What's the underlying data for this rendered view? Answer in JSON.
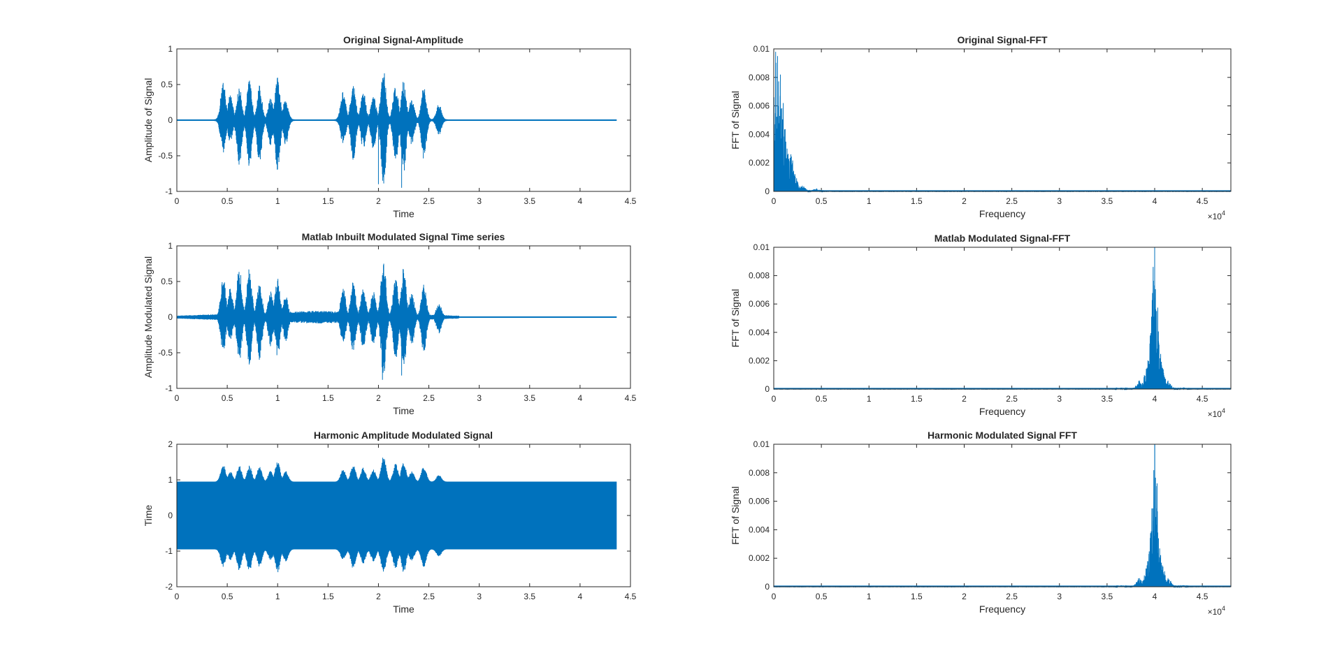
{
  "figure": {
    "background": "#ffffff",
    "line_color": "#0072BD",
    "axis_color": "#262626"
  },
  "chart_data": [
    {
      "id": "orig-amp",
      "type": "line",
      "kind": "audio",
      "title": "Original Signal-Amplitude",
      "xlabel": "Time",
      "ylabel": "Amplitude of Signal",
      "xlim": [
        0,
        4.5
      ],
      "ylim": [
        -1,
        1
      ],
      "xticks": [
        0,
        0.5,
        1,
        1.5,
        2,
        2.5,
        3,
        3.5,
        4,
        4.5
      ],
      "xtick_labels": [
        "0",
        "0.5",
        "1",
        "1.5",
        "2",
        "2.5",
        "3",
        "3.5",
        "4",
        "4.5"
      ],
      "yticks": [
        -1,
        -0.5,
        0,
        0.5,
        1
      ],
      "ytick_labels": [
        "-1",
        "-0.5",
        "0",
        "0.5",
        "1"
      ],
      "exponent": "",
      "carrier": 0,
      "baseline": 0,
      "noise": 0.01,
      "x_end": 4.36,
      "bursts": [
        {
          "x": 0.46,
          "max": 0.55,
          "min": -0.48
        },
        {
          "x": 0.53,
          "max": 0.35,
          "min": -0.3
        },
        {
          "x": 0.62,
          "max": 0.45,
          "min": -0.65
        },
        {
          "x": 0.72,
          "max": 0.55,
          "min": -0.7
        },
        {
          "x": 0.82,
          "max": 0.48,
          "min": -0.58
        },
        {
          "x": 0.93,
          "max": 0.3,
          "min": -0.35
        },
        {
          "x": 1.0,
          "max": 0.6,
          "min": -0.72
        },
        {
          "x": 1.08,
          "max": 0.3,
          "min": -0.35
        },
        {
          "x": 1.65,
          "max": 0.4,
          "min": -0.35
        },
        {
          "x": 1.75,
          "max": 0.5,
          "min": -0.55
        },
        {
          "x": 1.85,
          "max": 0.4,
          "min": -0.4
        },
        {
          "x": 1.95,
          "max": 0.35,
          "min": -0.4
        },
        {
          "x": 2.05,
          "max": 0.72,
          "min": -0.9
        },
        {
          "x": 2.17,
          "max": 0.5,
          "min": -0.6
        },
        {
          "x": 2.25,
          "max": 0.55,
          "min": -0.75
        },
        {
          "x": 2.33,
          "max": 0.3,
          "min": -0.35
        },
        {
          "x": 2.45,
          "max": 0.45,
          "min": -0.55
        },
        {
          "x": 2.6,
          "max": 0.22,
          "min": -0.2
        }
      ],
      "spikes": [
        {
          "x": 2.0,
          "value": -0.9
        },
        {
          "x": 2.23,
          "value": -0.95
        }
      ]
    },
    {
      "id": "orig-fft",
      "type": "line",
      "kind": "fft",
      "title": "Original Signal-FFT",
      "xlabel": "Frequency",
      "ylabel": "FFT of Signal",
      "xlim": [
        0,
        48000
      ],
      "ylim": [
        0,
        0.01
      ],
      "xticks": [
        0,
        5000,
        10000,
        15000,
        20000,
        25000,
        30000,
        35000,
        40000,
        45000
      ],
      "xtick_labels": [
        "0",
        "0.5",
        "1",
        "1.5",
        "2",
        "2.5",
        "3",
        "3.5",
        "4",
        "4.5"
      ],
      "yticks": [
        0,
        0.002,
        0.004,
        0.006,
        0.008,
        0.01
      ],
      "ytick_labels": [
        "0",
        "0.002",
        "0.004",
        "0.006",
        "0.008",
        "0.01"
      ],
      "exponent": "10",
      "exponent_power": "4",
      "peaks": [
        {
          "x": 200,
          "value": 0.0098
        },
        {
          "x": 400,
          "value": 0.0095
        },
        {
          "x": 700,
          "value": 0.0082
        },
        {
          "x": 1000,
          "value": 0.0062
        },
        {
          "x": 1400,
          "value": 0.003
        },
        {
          "x": 1800,
          "value": 0.0026
        },
        {
          "x": 2200,
          "value": 0.0012
        },
        {
          "x": 3000,
          "value": 0.0004
        },
        {
          "x": 4500,
          "value": 0.0002
        }
      ]
    },
    {
      "id": "matlab-mod",
      "type": "line",
      "kind": "audio",
      "title": "Matlab Inbuilt Modulated Signal Time series",
      "xlabel": "Time",
      "ylabel": "Amplitude Modulated Signal",
      "xlim": [
        0,
        4.5
      ],
      "ylim": [
        -1,
        1
      ],
      "xticks": [
        0,
        0.5,
        1,
        1.5,
        2,
        2.5,
        3,
        3.5,
        4,
        4.5
      ],
      "xtick_labels": [
        "0",
        "0.5",
        "1",
        "1.5",
        "2",
        "2.5",
        "3",
        "3.5",
        "4",
        "4.5"
      ],
      "yticks": [
        -1,
        -0.5,
        0,
        0.5,
        1
      ],
      "ytick_labels": [
        "-1",
        "-0.5",
        "0",
        "0.5",
        "1"
      ],
      "exponent": "",
      "carrier": 0.08,
      "baseline": 0,
      "noise": 0.01,
      "x_end": 4.36,
      "bursts": [
        {
          "x": 0.46,
          "max": 0.55,
          "min": -0.5
        },
        {
          "x": 0.53,
          "max": 0.4,
          "min": -0.35
        },
        {
          "x": 0.62,
          "max": 0.7,
          "min": -0.62
        },
        {
          "x": 0.72,
          "max": 0.68,
          "min": -0.68
        },
        {
          "x": 0.82,
          "max": 0.5,
          "min": -0.6
        },
        {
          "x": 0.93,
          "max": 0.35,
          "min": -0.4
        },
        {
          "x": 1.0,
          "max": 0.55,
          "min": -0.55
        },
        {
          "x": 1.08,
          "max": 0.3,
          "min": -0.35
        },
        {
          "x": 1.65,
          "max": 0.4,
          "min": -0.4
        },
        {
          "x": 1.75,
          "max": 0.5,
          "min": -0.5
        },
        {
          "x": 1.85,
          "max": 0.4,
          "min": -0.45
        },
        {
          "x": 1.95,
          "max": 0.35,
          "min": -0.4
        },
        {
          "x": 2.05,
          "max": 0.83,
          "min": -0.85
        },
        {
          "x": 2.17,
          "max": 0.55,
          "min": -0.6
        },
        {
          "x": 2.25,
          "max": 0.7,
          "min": -0.75
        },
        {
          "x": 2.33,
          "max": 0.35,
          "min": -0.4
        },
        {
          "x": 2.45,
          "max": 0.45,
          "min": -0.5
        },
        {
          "x": 2.6,
          "max": 0.2,
          "min": -0.22
        }
      ],
      "spikes": [
        {
          "x": 2.04,
          "value": -0.88
        },
        {
          "x": 2.23,
          "value": -0.82
        }
      ]
    },
    {
      "id": "matlab-fft",
      "type": "line",
      "kind": "fft",
      "title": "Matlab Modulated Signal-FFT",
      "xlabel": "Frequency",
      "ylabel": "FFT of Signal",
      "xlim": [
        0,
        48000
      ],
      "ylim": [
        0,
        0.01
      ],
      "xticks": [
        0,
        5000,
        10000,
        15000,
        20000,
        25000,
        30000,
        35000,
        40000,
        45000
      ],
      "xtick_labels": [
        "0",
        "0.5",
        "1",
        "1.5",
        "2",
        "2.5",
        "3",
        "3.5",
        "4",
        "4.5"
      ],
      "yticks": [
        0,
        0.002,
        0.004,
        0.006,
        0.008,
        0.01
      ],
      "ytick_labels": [
        "0",
        "0.002",
        "0.004",
        "0.006",
        "0.008",
        "0.01"
      ],
      "exponent": "10",
      "exponent_power": "4",
      "peaks": [
        {
          "x": 40000,
          "value": 0.0101
        },
        {
          "x": 39800,
          "value": 0.0055
        },
        {
          "x": 40200,
          "value": 0.0055
        },
        {
          "x": 39600,
          "value": 0.0034
        },
        {
          "x": 40400,
          "value": 0.0034
        },
        {
          "x": 39200,
          "value": 0.0015
        },
        {
          "x": 40800,
          "value": 0.0015
        },
        {
          "x": 38400,
          "value": 0.0006
        },
        {
          "x": 41400,
          "value": 0.0006
        },
        {
          "x": 36500,
          "value": 0.0001
        },
        {
          "x": 43000,
          "value": 0.0001
        }
      ]
    },
    {
      "id": "harmonic-mod",
      "type": "line",
      "kind": "audio",
      "title": "Harmonic Amplitude Modulated Signal",
      "xlabel": "Time",
      "ylabel": "Time",
      "xlim": [
        0,
        4.5
      ],
      "ylim": [
        -2,
        2
      ],
      "xticks": [
        0,
        0.5,
        1,
        1.5,
        2,
        2.5,
        3,
        3.5,
        4,
        4.5
      ],
      "xtick_labels": [
        "0",
        "0.5",
        "1",
        "1.5",
        "2",
        "2.5",
        "3",
        "3.5",
        "4",
        "4.5"
      ],
      "yticks": [
        -2,
        -1,
        0,
        1,
        2
      ],
      "ytick_labels": [
        "-2",
        "-1",
        "0",
        "1",
        "2"
      ],
      "exponent": "",
      "carrier": 1,
      "baseline": 0.95,
      "noise": 0.02,
      "x_end": 4.36,
      "bursts": [
        {
          "x": 0.46,
          "max": 0.5,
          "min": -0.5
        },
        {
          "x": 0.53,
          "max": 0.3,
          "min": -0.3
        },
        {
          "x": 0.62,
          "max": 0.45,
          "min": -0.6
        },
        {
          "x": 0.72,
          "max": 0.45,
          "min": -0.65
        },
        {
          "x": 0.82,
          "max": 0.45,
          "min": -0.5
        },
        {
          "x": 0.93,
          "max": 0.3,
          "min": -0.3
        },
        {
          "x": 1.0,
          "max": 0.6,
          "min": -0.65
        },
        {
          "x": 1.08,
          "max": 0.3,
          "min": -0.35
        },
        {
          "x": 1.65,
          "max": 0.35,
          "min": -0.3
        },
        {
          "x": 1.75,
          "max": 0.5,
          "min": -0.55
        },
        {
          "x": 1.85,
          "max": 0.4,
          "min": -0.4
        },
        {
          "x": 1.95,
          "max": 0.35,
          "min": -0.35
        },
        {
          "x": 2.05,
          "max": 0.72,
          "min": -0.7
        },
        {
          "x": 2.17,
          "max": 0.5,
          "min": -0.55
        },
        {
          "x": 2.25,
          "max": 0.55,
          "min": -0.65
        },
        {
          "x": 2.33,
          "max": 0.3,
          "min": -0.35
        },
        {
          "x": 2.45,
          "max": 0.45,
          "min": -0.5
        },
        {
          "x": 2.6,
          "max": 0.2,
          "min": -0.2
        }
      ],
      "spikes": []
    },
    {
      "id": "harmonic-fft",
      "type": "line",
      "kind": "fft",
      "title": "Harmonic Modulated Signal FFT",
      "xlabel": "Frequency",
      "ylabel": "FFT of Signal",
      "xlim": [
        0,
        48000
      ],
      "ylim": [
        0,
        0.01
      ],
      "xticks": [
        0,
        5000,
        10000,
        15000,
        20000,
        25000,
        30000,
        35000,
        40000,
        45000
      ],
      "xtick_labels": [
        "0",
        "0.5",
        "1",
        "1.5",
        "2",
        "2.5",
        "3",
        "3.5",
        "4",
        "4.5"
      ],
      "yticks": [
        0,
        0.002,
        0.004,
        0.006,
        0.008,
        0.01
      ],
      "ytick_labels": [
        "0",
        "0.002",
        "0.004",
        "0.006",
        "0.008",
        "0.01"
      ],
      "exponent": "10",
      "exponent_power": "4",
      "peaks": [
        {
          "x": 40000,
          "value": 0.0101
        },
        {
          "x": 39800,
          "value": 0.0055
        },
        {
          "x": 40200,
          "value": 0.0055
        },
        {
          "x": 39600,
          "value": 0.0034
        },
        {
          "x": 40400,
          "value": 0.0034
        },
        {
          "x": 39200,
          "value": 0.0015
        },
        {
          "x": 40800,
          "value": 0.0015
        },
        {
          "x": 38400,
          "value": 0.0006
        },
        {
          "x": 41400,
          "value": 0.0006
        },
        {
          "x": 36500,
          "value": 0.0001
        },
        {
          "x": 43000,
          "value": 0.0001
        }
      ]
    }
  ]
}
